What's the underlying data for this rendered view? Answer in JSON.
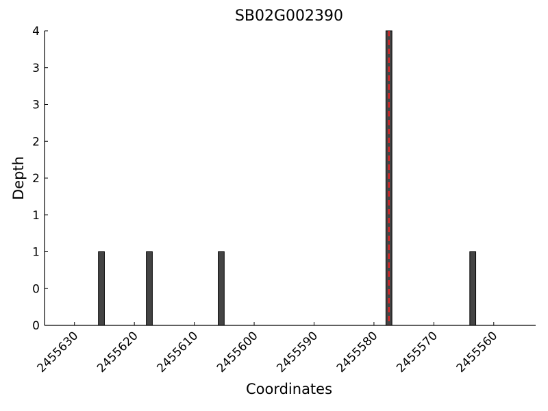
{
  "chart_data": {
    "type": "bar",
    "title": "SB02G002390",
    "xlabel": "Coordinates",
    "ylabel": "Depth",
    "x": [
      2455625.5,
      2455617.5,
      2455605.5,
      2455577.5,
      2455563.5
    ],
    "values": [
      1,
      1,
      1,
      4,
      1
    ],
    "color": "#444444",
    "xlim": [
      2455635,
      2455553
    ],
    "xticks": [
      2455630,
      2455620,
      2455610,
      2455600,
      2455590,
      2455580,
      2455570,
      2455560
    ],
    "ylim": [
      0,
      4
    ],
    "yticks": [
      0,
      {
        "value": 0.5,
        "label": "0"
      },
      1,
      {
        "value": 1.5,
        "label": "1"
      },
      2,
      {
        "value": 2.5,
        "label": "2"
      },
      3,
      {
        "value": 3.5,
        "label": "3"
      },
      4
    ],
    "vline": {
      "x": 2455577.5,
      "color": "#d62728"
    }
  }
}
